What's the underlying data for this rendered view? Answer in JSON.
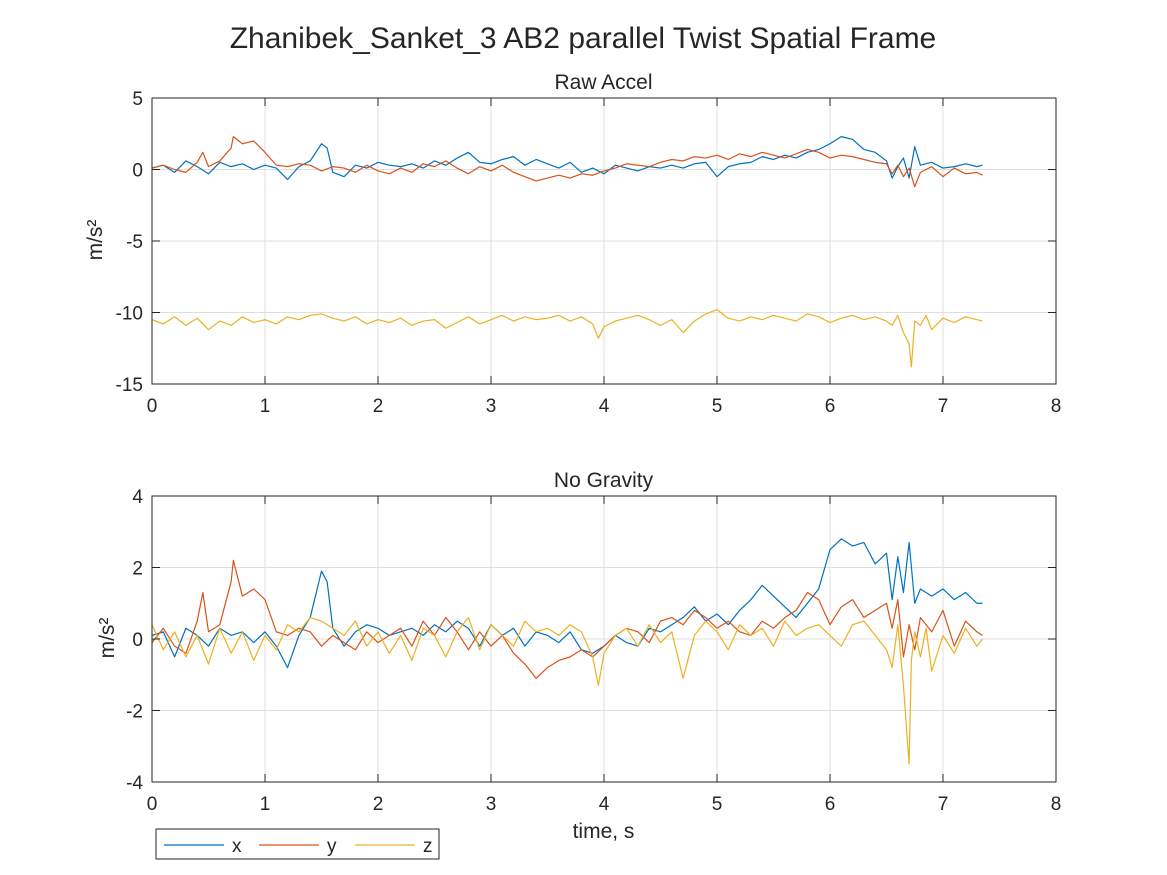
{
  "figure": {
    "title": "Zhanibek_Sanket_3 AB2 parallel Twist Spatial Frame",
    "colors": {
      "x": "#0072BD",
      "y": "#D95319",
      "z": "#EDB120",
      "grid": "#DFDFDF",
      "axis": "#262626"
    }
  },
  "legend": {
    "placement": "bottom-left",
    "entries": [
      {
        "label": "x",
        "color": "#0072BD"
      },
      {
        "label": "y",
        "color": "#D95319"
      },
      {
        "label": "z",
        "color": "#EDB120"
      }
    ]
  },
  "chart_data": [
    {
      "type": "line",
      "title": "Raw Accel",
      "xlabel": "",
      "ylabel": "m/s²",
      "xlim": [
        0,
        8
      ],
      "ylim": [
        -15,
        5
      ],
      "xticks": [
        0,
        1,
        2,
        3,
        4,
        5,
        6,
        7,
        8
      ],
      "yticks": [
        -15,
        -10,
        -5,
        0,
        5
      ],
      "grid": true,
      "series": [
        {
          "name": "x",
          "color": "#0072BD",
          "x": [
            0,
            0.1,
            0.2,
            0.3,
            0.4,
            0.5,
            0.6,
            0.7,
            0.8,
            0.9,
            1.0,
            1.1,
            1.2,
            1.3,
            1.4,
            1.5,
            1.55,
            1.6,
            1.7,
            1.8,
            1.9,
            2.0,
            2.1,
            2.2,
            2.3,
            2.4,
            2.5,
            2.6,
            2.7,
            2.8,
            2.9,
            3.0,
            3.1,
            3.2,
            3.3,
            3.4,
            3.5,
            3.6,
            3.7,
            3.8,
            3.9,
            4.0,
            4.1,
            4.2,
            4.3,
            4.4,
            4.5,
            4.6,
            4.7,
            4.8,
            4.9,
            5.0,
            5.1,
            5.2,
            5.3,
            5.4,
            5.5,
            5.6,
            5.7,
            5.8,
            5.9,
            6.0,
            6.1,
            6.2,
            6.3,
            6.4,
            6.5,
            6.55,
            6.6,
            6.65,
            6.7,
            6.75,
            6.8,
            6.9,
            7.0,
            7.1,
            7.2,
            7.3,
            7.35
          ],
          "y": [
            0.1,
            0.3,
            -0.2,
            0.6,
            0.2,
            -0.3,
            0.5,
            0.2,
            0.4,
            0.0,
            0.3,
            0.1,
            -0.7,
            0.2,
            0.6,
            1.8,
            1.5,
            -0.2,
            -0.5,
            0.3,
            0.1,
            0.5,
            0.3,
            0.2,
            0.4,
            0.1,
            0.6,
            0.3,
            0.8,
            1.2,
            0.5,
            0.4,
            0.7,
            0.9,
            0.3,
            0.7,
            0.4,
            0.1,
            0.5,
            -0.2,
            0.1,
            -0.3,
            0.3,
            0.1,
            -0.1,
            0.2,
            0.1,
            0.3,
            0.1,
            0.4,
            0.5,
            -0.5,
            0.2,
            0.4,
            0.5,
            0.9,
            0.7,
            1.0,
            0.8,
            1.2,
            1.4,
            1.8,
            2.3,
            2.1,
            1.4,
            1.2,
            0.6,
            -0.6,
            0.2,
            0.8,
            -0.6,
            1.6,
            0.3,
            0.5,
            0.1,
            0.2,
            0.4,
            0.2,
            0.3
          ]
        },
        {
          "name": "y",
          "color": "#D95319",
          "x": [
            0,
            0.1,
            0.2,
            0.3,
            0.4,
            0.45,
            0.5,
            0.6,
            0.7,
            0.72,
            0.8,
            0.9,
            1.0,
            1.1,
            1.2,
            1.3,
            1.4,
            1.5,
            1.6,
            1.7,
            1.8,
            1.9,
            2.0,
            2.1,
            2.2,
            2.3,
            2.4,
            2.5,
            2.6,
            2.7,
            2.8,
            2.9,
            3.0,
            3.1,
            3.2,
            3.3,
            3.4,
            3.5,
            3.6,
            3.7,
            3.8,
            3.9,
            4.0,
            4.1,
            4.2,
            4.3,
            4.4,
            4.5,
            4.6,
            4.7,
            4.8,
            4.9,
            5.0,
            5.1,
            5.2,
            5.3,
            5.4,
            5.5,
            5.6,
            5.7,
            5.8,
            5.9,
            6.0,
            6.1,
            6.2,
            6.3,
            6.4,
            6.5,
            6.55,
            6.6,
            6.65,
            6.7,
            6.75,
            6.8,
            6.9,
            7.0,
            7.1,
            7.2,
            7.3,
            7.35
          ],
          "y": [
            0.1,
            0.3,
            0.0,
            -0.2,
            0.5,
            1.2,
            0.2,
            0.6,
            1.5,
            2.3,
            1.8,
            2.0,
            1.2,
            0.3,
            0.2,
            0.4,
            0.3,
            -0.1,
            0.2,
            0.1,
            -0.2,
            0.3,
            -0.1,
            -0.3,
            0.1,
            -0.2,
            0.4,
            0.2,
            0.6,
            0.1,
            -0.3,
            0.2,
            -0.1,
            0.3,
            -0.2,
            -0.5,
            -0.8,
            -0.6,
            -0.4,
            -0.6,
            -0.3,
            -0.4,
            -0.1,
            0.1,
            0.4,
            0.3,
            0.2,
            0.5,
            0.7,
            0.6,
            0.9,
            0.8,
            1.0,
            0.7,
            1.1,
            0.9,
            1.2,
            1.0,
            0.8,
            1.1,
            1.4,
            1.2,
            0.8,
            1.0,
            0.9,
            0.7,
            0.5,
            0.4,
            -0.3,
            0.3,
            -0.5,
            0.1,
            -1.2,
            -0.2,
            0.2,
            -0.5,
            0.1,
            -0.3,
            -0.2,
            -0.4
          ]
        },
        {
          "name": "z",
          "color": "#EDB120",
          "x": [
            0,
            0.1,
            0.2,
            0.3,
            0.4,
            0.5,
            0.6,
            0.7,
            0.8,
            0.9,
            1.0,
            1.1,
            1.2,
            1.3,
            1.4,
            1.5,
            1.6,
            1.7,
            1.8,
            1.9,
            2.0,
            2.1,
            2.2,
            2.3,
            2.4,
            2.5,
            2.6,
            2.7,
            2.8,
            2.9,
            3.0,
            3.1,
            3.2,
            3.3,
            3.4,
            3.5,
            3.6,
            3.7,
            3.8,
            3.9,
            3.95,
            4.0,
            4.1,
            4.2,
            4.3,
            4.4,
            4.5,
            4.6,
            4.7,
            4.8,
            4.9,
            5.0,
            5.1,
            5.2,
            5.3,
            5.4,
            5.5,
            5.6,
            5.7,
            5.8,
            5.9,
            6.0,
            6.1,
            6.2,
            6.3,
            6.4,
            6.5,
            6.55,
            6.6,
            6.65,
            6.7,
            6.72,
            6.75,
            6.8,
            6.85,
            6.9,
            7.0,
            7.1,
            7.2,
            7.3,
            7.35
          ],
          "y": [
            -10.5,
            -10.8,
            -10.3,
            -10.9,
            -10.4,
            -11.2,
            -10.6,
            -10.9,
            -10.3,
            -10.7,
            -10.5,
            -10.8,
            -10.3,
            -10.5,
            -10.2,
            -10.1,
            -10.4,
            -10.6,
            -10.3,
            -10.8,
            -10.5,
            -10.7,
            -10.4,
            -10.9,
            -10.6,
            -10.5,
            -11.1,
            -10.7,
            -10.3,
            -10.8,
            -10.5,
            -10.2,
            -10.6,
            -10.3,
            -10.5,
            -10.4,
            -10.2,
            -10.6,
            -10.3,
            -10.8,
            -11.8,
            -11.0,
            -10.6,
            -10.4,
            -10.2,
            -10.5,
            -10.9,
            -10.5,
            -11.4,
            -10.6,
            -10.1,
            -9.8,
            -10.4,
            -10.6,
            -10.3,
            -10.5,
            -10.2,
            -10.4,
            -10.6,
            -10.1,
            -10.3,
            -10.7,
            -10.4,
            -10.2,
            -10.5,
            -10.3,
            -10.6,
            -10.9,
            -10.2,
            -11.4,
            -12.2,
            -13.8,
            -10.6,
            -10.9,
            -10.2,
            -11.2,
            -10.4,
            -10.7,
            -10.3,
            -10.5,
            -10.6
          ]
        }
      ]
    },
    {
      "type": "line",
      "title": "No Gravity",
      "xlabel": "time, s",
      "ylabel": "m/s²",
      "xlim": [
        0,
        8
      ],
      "ylim": [
        -4,
        4
      ],
      "xticks": [
        0,
        1,
        2,
        3,
        4,
        5,
        6,
        7,
        8
      ],
      "yticks": [
        -4,
        -2,
        0,
        2,
        4
      ],
      "grid": true,
      "series": [
        {
          "name": "x",
          "color": "#0072BD",
          "x": [
            0,
            0.1,
            0.2,
            0.3,
            0.4,
            0.5,
            0.6,
            0.7,
            0.8,
            0.9,
            1.0,
            1.1,
            1.2,
            1.3,
            1.4,
            1.5,
            1.55,
            1.6,
            1.7,
            1.8,
            1.9,
            2.0,
            2.1,
            2.2,
            2.3,
            2.4,
            2.5,
            2.6,
            2.7,
            2.8,
            2.9,
            3.0,
            3.1,
            3.2,
            3.3,
            3.4,
            3.5,
            3.6,
            3.7,
            3.8,
            3.9,
            4.0,
            4.1,
            4.2,
            4.3,
            4.4,
            4.5,
            4.6,
            4.7,
            4.8,
            4.9,
            5.0,
            5.1,
            5.2,
            5.3,
            5.4,
            5.5,
            5.6,
            5.7,
            5.8,
            5.9,
            6.0,
            6.1,
            6.2,
            6.3,
            6.4,
            6.5,
            6.55,
            6.6,
            6.65,
            6.7,
            6.75,
            6.8,
            6.9,
            7.0,
            7.1,
            7.2,
            7.3,
            7.35
          ],
          "y": [
            0.1,
            0.2,
            -0.5,
            0.3,
            0.1,
            -0.2,
            0.3,
            0.1,
            0.2,
            -0.1,
            0.2,
            -0.2,
            -0.8,
            0.1,
            0.6,
            1.9,
            1.6,
            0.3,
            -0.2,
            0.2,
            0.4,
            0.3,
            0.1,
            0.2,
            0.3,
            0.1,
            0.4,
            0.2,
            0.5,
            0.3,
            -0.2,
            0.4,
            0.1,
            0.3,
            -0.2,
            0.2,
            0.1,
            -0.1,
            0.2,
            -0.3,
            -0.4,
            -0.2,
            0.1,
            -0.1,
            -0.2,
            0.3,
            0.2,
            0.4,
            0.6,
            0.9,
            0.5,
            0.7,
            0.4,
            0.8,
            1.1,
            1.5,
            1.2,
            0.9,
            0.6,
            1.0,
            1.4,
            2.5,
            2.8,
            2.6,
            2.7,
            2.1,
            2.4,
            1.1,
            2.3,
            1.3,
            2.7,
            1.0,
            1.4,
            1.2,
            1.4,
            1.1,
            1.3,
            1.0,
            1.0
          ]
        },
        {
          "name": "y",
          "color": "#D95319",
          "x": [
            0,
            0.1,
            0.2,
            0.3,
            0.4,
            0.45,
            0.5,
            0.6,
            0.7,
            0.72,
            0.8,
            0.9,
            1.0,
            1.1,
            1.2,
            1.3,
            1.4,
            1.5,
            1.6,
            1.7,
            1.8,
            1.9,
            2.0,
            2.1,
            2.2,
            2.3,
            2.4,
            2.5,
            2.6,
            2.7,
            2.8,
            2.9,
            3.0,
            3.1,
            3.2,
            3.3,
            3.4,
            3.5,
            3.6,
            3.7,
            3.8,
            3.9,
            4.0,
            4.1,
            4.2,
            4.3,
            4.4,
            4.5,
            4.6,
            4.7,
            4.8,
            4.9,
            5.0,
            5.1,
            5.2,
            5.3,
            5.4,
            5.5,
            5.6,
            5.7,
            5.8,
            5.9,
            6.0,
            6.1,
            6.2,
            6.3,
            6.4,
            6.5,
            6.55,
            6.6,
            6.65,
            6.7,
            6.75,
            6.8,
            6.9,
            7.0,
            7.1,
            7.2,
            7.3,
            7.35
          ],
          "y": [
            -0.1,
            0.3,
            -0.2,
            -0.4,
            0.5,
            1.3,
            0.2,
            0.4,
            1.6,
            2.2,
            1.2,
            1.4,
            1.1,
            0.2,
            0.1,
            0.3,
            0.2,
            -0.2,
            0.1,
            -0.1,
            -0.3,
            0.2,
            -0.1,
            0.1,
            0.3,
            -0.2,
            0.5,
            0.1,
            0.6,
            0.2,
            -0.3,
            0.2,
            -0.2,
            0.1,
            -0.4,
            -0.7,
            -1.1,
            -0.8,
            -0.6,
            -0.5,
            -0.3,
            -0.5,
            -0.2,
            0.1,
            0.3,
            0.2,
            -0.1,
            0.5,
            0.6,
            0.4,
            0.8,
            0.6,
            0.3,
            0.5,
            0.2,
            0.1,
            0.5,
            0.3,
            0.6,
            0.8,
            1.3,
            1.1,
            0.4,
            0.9,
            1.1,
            0.6,
            0.8,
            1.0,
            0.3,
            1.1,
            -0.5,
            0.4,
            -0.3,
            0.6,
            0.2,
            0.8,
            -0.2,
            0.5,
            0.2,
            0.1
          ]
        },
        {
          "name": "z",
          "color": "#EDB120",
          "x": [
            0,
            0.1,
            0.2,
            0.3,
            0.4,
            0.5,
            0.6,
            0.7,
            0.8,
            0.9,
            1.0,
            1.1,
            1.2,
            1.3,
            1.4,
            1.5,
            1.6,
            1.7,
            1.8,
            1.9,
            2.0,
            2.1,
            2.2,
            2.3,
            2.4,
            2.5,
            2.6,
            2.7,
            2.8,
            2.9,
            3.0,
            3.1,
            3.2,
            3.3,
            3.4,
            3.5,
            3.6,
            3.7,
            3.8,
            3.9,
            3.95,
            4.0,
            4.1,
            4.2,
            4.3,
            4.4,
            4.5,
            4.6,
            4.7,
            4.8,
            4.9,
            5.0,
            5.1,
            5.2,
            5.3,
            5.4,
            5.5,
            5.6,
            5.7,
            5.8,
            5.9,
            6.0,
            6.1,
            6.2,
            6.3,
            6.4,
            6.5,
            6.55,
            6.6,
            6.65,
            6.7,
            6.72,
            6.75,
            6.8,
            6.85,
            6.9,
            7.0,
            7.1,
            7.2,
            7.3,
            7.35
          ],
          "y": [
            0.4,
            -0.3,
            0.2,
            -0.5,
            0.1,
            -0.7,
            0.3,
            -0.4,
            0.2,
            -0.6,
            0.1,
            -0.3,
            0.4,
            0.2,
            0.6,
            0.5,
            0.3,
            0.1,
            0.5,
            -0.2,
            0.2,
            -0.4,
            0.1,
            -0.6,
            0.3,
            0.1,
            -0.5,
            0.2,
            0.6,
            -0.3,
            0.4,
            0.1,
            -0.2,
            0.5,
            0.2,
            0.3,
            0.1,
            0.4,
            0.2,
            -0.5,
            -1.3,
            -0.4,
            0.1,
            0.3,
            -0.2,
            0.4,
            -0.1,
            0.2,
            -1.1,
            0.1,
            0.5,
            0.2,
            -0.3,
            0.4,
            0.1,
            0.3,
            -0.2,
            0.5,
            0.1,
            0.3,
            0.4,
            0.1,
            -0.2,
            0.4,
            0.5,
            0.1,
            -0.3,
            -0.8,
            0.4,
            -1.3,
            -3.5,
            -0.6,
            0.2,
            -0.5,
            0.3,
            -0.9,
            0.1,
            -0.4,
            0.3,
            -0.2,
            0.0
          ]
        }
      ]
    }
  ]
}
